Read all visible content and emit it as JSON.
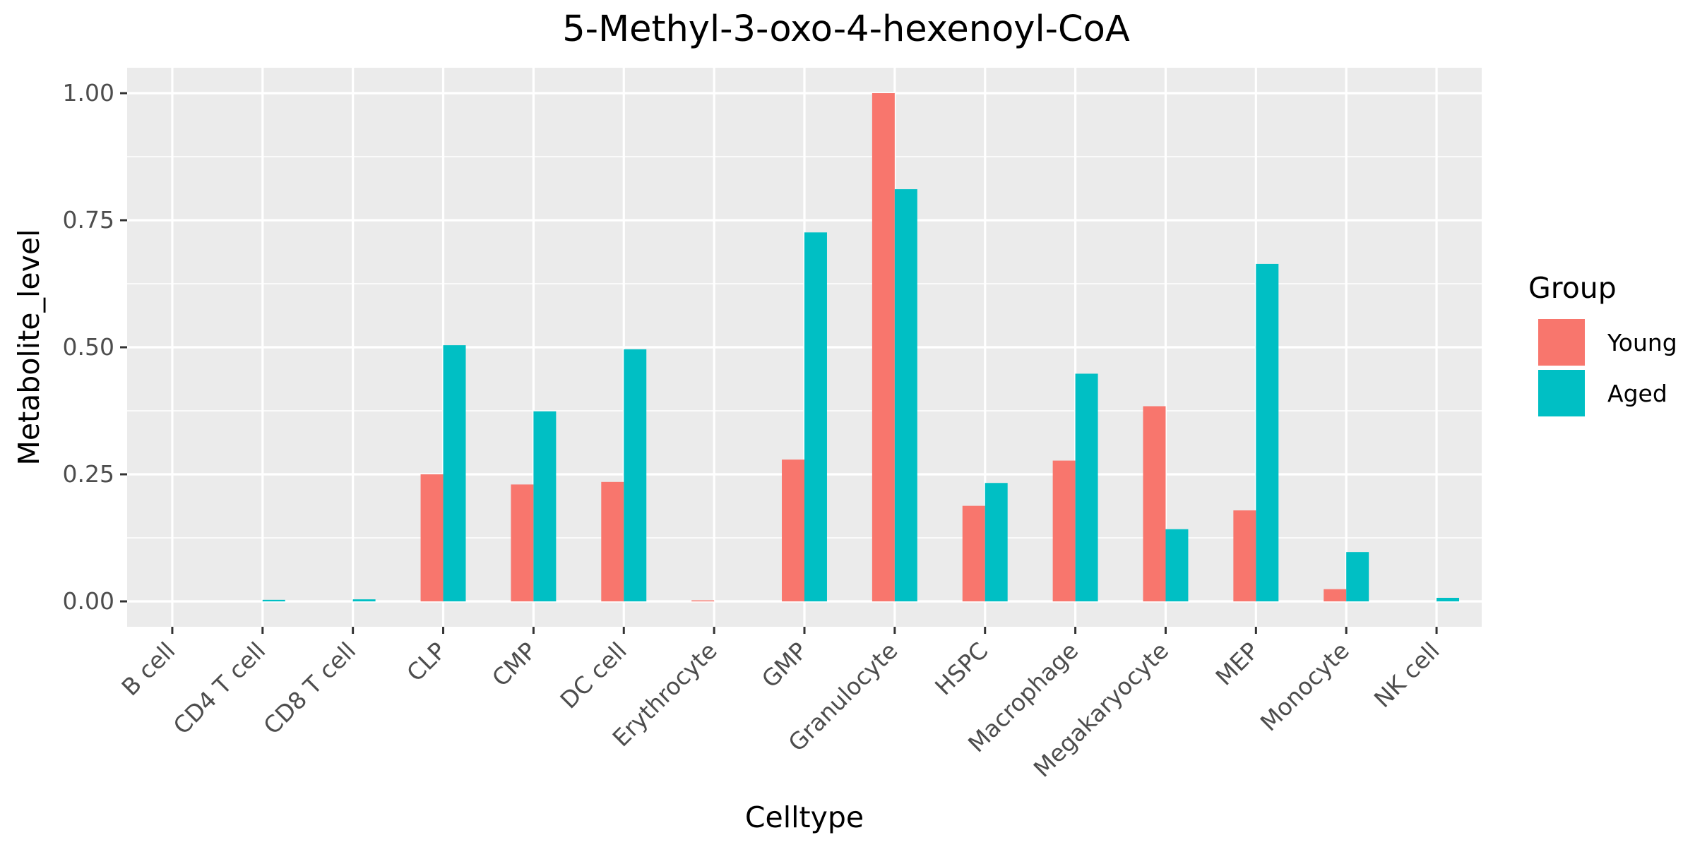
{
  "chart_data": {
    "type": "bar",
    "title": "5-Methyl-3-oxo-4-hexenoyl-CoA",
    "xlabel": "Celltype",
    "ylabel": "Metabolite_level",
    "categories": [
      "B cell",
      "CD4 T cell",
      "CD8 T cell",
      "CLP",
      "CMP",
      "DC cell",
      "Erythrocyte",
      "GMP",
      "Granulocyte",
      "HSPC",
      "Macrophage",
      "Megakaryocyte",
      "MEP",
      "Monocyte",
      "NK cell"
    ],
    "series": [
      {
        "name": "Young",
        "color": "#F8766D",
        "values": [
          0.0,
          0.0,
          0.0,
          0.25,
          0.23,
          0.235,
          0.002,
          0.279,
          1.0,
          0.188,
          0.277,
          0.384,
          0.179,
          0.024,
          0.0
        ]
      },
      {
        "name": "Aged",
        "color": "#00BFC4",
        "values": [
          0.0,
          0.003,
          0.004,
          0.504,
          0.374,
          0.496,
          0.0,
          0.726,
          0.811,
          0.233,
          0.448,
          0.142,
          0.664,
          0.097,
          0.007
        ]
      }
    ],
    "ylim": [
      -0.05,
      1.05
    ],
    "yticks": [
      0,
      0.25,
      0.5,
      0.75,
      1.0
    ],
    "ytick_labels": [
      "0.00",
      "0.25",
      "0.50",
      "0.75",
      "1.00"
    ],
    "legend": {
      "title": "Group",
      "position": "right"
    },
    "grid": true,
    "panel_background": "#EBEBEB",
    "grid_color": "#FFFFFF"
  }
}
